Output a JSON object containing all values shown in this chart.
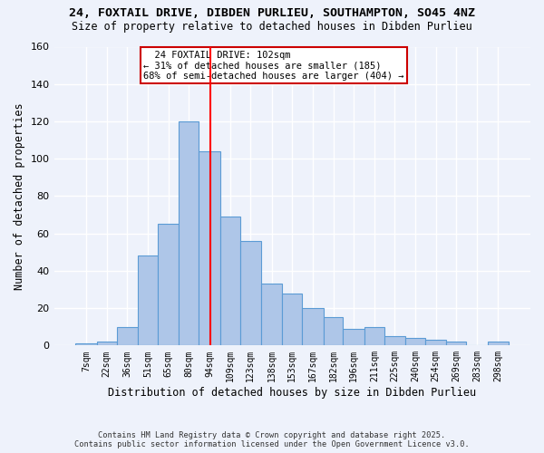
{
  "title": "24, FOXTAIL DRIVE, DIBDEN PURLIEU, SOUTHAMPTON, SO45 4NZ",
  "subtitle": "Size of property relative to detached houses in Dibden Purlieu",
  "xlabel": "Distribution of detached houses by size in Dibden Purlieu",
  "ylabel": "Number of detached properties",
  "bar_labels": [
    "7sqm",
    "22sqm",
    "36sqm",
    "51sqm",
    "65sqm",
    "80sqm",
    "94sqm",
    "109sqm",
    "123sqm",
    "138sqm",
    "153sqm",
    "167sqm",
    "182sqm",
    "196sqm",
    "211sqm",
    "225sqm",
    "240sqm",
    "254sqm",
    "269sqm",
    "283sqm",
    "298sqm"
  ],
  "bar_heights": [
    1,
    2,
    10,
    48,
    65,
    120,
    104,
    69,
    56,
    33,
    28,
    20,
    15,
    9,
    10,
    5,
    4,
    3,
    2,
    0,
    2
  ],
  "bar_color": "#aec6e8",
  "bar_edge_color": "#5b9bd5",
  "bar_left_edges": [
    7,
    22,
    36,
    51,
    65,
    80,
    94,
    109,
    123,
    138,
    153,
    167,
    182,
    196,
    211,
    225,
    240,
    254,
    269,
    283,
    298
  ],
  "bar_widths": [
    15,
    14,
    15,
    14,
    15,
    14,
    15,
    14,
    15,
    15,
    14,
    15,
    14,
    15,
    14,
    15,
    14,
    15,
    14,
    15,
    15
  ],
  "property_line_x": 102,
  "ylim": [
    0,
    160
  ],
  "yticks": [
    0,
    20,
    40,
    60,
    80,
    100,
    120,
    140,
    160
  ],
  "annotation_text": "  24 FOXTAIL DRIVE: 102sqm  \n← 31% of detached houses are smaller (185)\n68% of semi-detached houses are larger (404) →",
  "annotation_box_color": "#ffffff",
  "annotation_box_edge": "#cc0000",
  "footer_line1": "Contains HM Land Registry data © Crown copyright and database right 2025.",
  "footer_line2": "Contains public sector information licensed under the Open Government Licence v3.0.",
  "background_color": "#eef2fb",
  "grid_color": "#ffffff"
}
